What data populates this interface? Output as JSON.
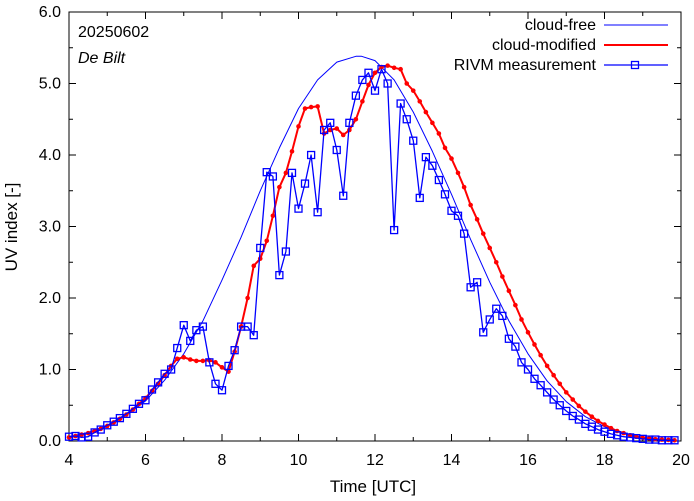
{
  "chart_data": {
    "type": "line",
    "title": "",
    "annotations": {
      "date": "20250602",
      "location": "De Bilt"
    },
    "xlabel": "Time  [UTC]",
    "ylabel": "UV index  [-]",
    "xlim": [
      4,
      20
    ],
    "ylim": [
      0,
      6
    ],
    "x_ticks": [
      4,
      6,
      8,
      10,
      12,
      14,
      16,
      18,
      20
    ],
    "x_tick_labels": [
      "4",
      "6",
      "8",
      "10",
      "12",
      "14",
      "16",
      "18",
      "20"
    ],
    "y_ticks": [
      0,
      1,
      2,
      3,
      4,
      5,
      6
    ],
    "y_tick_labels": [
      "0.0",
      "1.0",
      "2.0",
      "3.0",
      "4.0",
      "5.0",
      "6.0"
    ],
    "legend_position": "top-right",
    "series": [
      {
        "name": "cloud-free",
        "color": "#0000ff",
        "marker": "none",
        "x": [
          4.0,
          4.5,
          5.0,
          5.5,
          6.0,
          6.5,
          7.0,
          7.5,
          8.0,
          8.5,
          9.0,
          9.5,
          10.0,
          10.5,
          11.0,
          11.5,
          11.65,
          12.0,
          12.5,
          13.0,
          13.5,
          14.0,
          14.5,
          15.0,
          15.5,
          16.0,
          16.5,
          17.0,
          17.5,
          18.0,
          18.5,
          19.0,
          19.5,
          19.8
        ],
        "y": [
          0.06,
          0.12,
          0.22,
          0.36,
          0.56,
          0.85,
          1.22,
          1.68,
          2.25,
          2.85,
          3.5,
          4.1,
          4.65,
          5.05,
          5.3,
          5.38,
          5.38,
          5.32,
          5.05,
          4.6,
          4.05,
          3.45,
          2.82,
          2.22,
          1.68,
          1.22,
          0.84,
          0.55,
          0.34,
          0.2,
          0.11,
          0.05,
          0.02,
          0.01
        ]
      },
      {
        "name": "cloud-modified",
        "color": "#ff0000",
        "marker": "dot",
        "x": [
          4.0,
          4.17,
          4.33,
          4.5,
          4.67,
          4.83,
          5.0,
          5.17,
          5.33,
          5.5,
          5.67,
          5.83,
          6.0,
          6.17,
          6.33,
          6.5,
          6.67,
          6.83,
          7.0,
          7.17,
          7.33,
          7.5,
          7.67,
          7.83,
          8.0,
          8.17,
          8.33,
          8.5,
          8.67,
          8.83,
          9.0,
          9.17,
          9.33,
          9.5,
          9.67,
          9.83,
          10.0,
          10.17,
          10.33,
          10.5,
          10.67,
          10.83,
          11.0,
          11.17,
          11.33,
          11.5,
          11.67,
          11.83,
          12.0,
          12.17,
          12.33,
          12.5,
          12.67,
          12.83,
          13.0,
          13.17,
          13.33,
          13.5,
          13.67,
          13.83,
          14.0,
          14.17,
          14.33,
          14.5,
          14.67,
          14.83,
          15.0,
          15.17,
          15.33,
          15.5,
          15.67,
          15.83,
          16.0,
          16.17,
          16.33,
          16.5,
          16.67,
          16.83,
          17.0,
          17.17,
          17.33,
          17.5,
          17.67,
          17.83,
          18.0,
          18.17,
          18.33,
          18.5,
          18.67,
          18.83,
          19.0,
          19.17,
          19.33,
          19.5,
          19.67,
          19.83
        ],
        "y": [
          0.05,
          0.07,
          0.09,
          0.11,
          0.14,
          0.17,
          0.21,
          0.26,
          0.31,
          0.37,
          0.44,
          0.52,
          0.6,
          0.7,
          0.8,
          0.92,
          1.05,
          1.15,
          1.17,
          1.14,
          1.12,
          1.12,
          1.13,
          1.1,
          1.03,
          0.97,
          1.25,
          1.6,
          2.0,
          2.45,
          2.55,
          2.8,
          3.15,
          3.55,
          3.75,
          4.05,
          4.4,
          4.65,
          4.67,
          4.68,
          4.3,
          4.35,
          4.37,
          4.28,
          4.35,
          4.5,
          4.75,
          4.98,
          5.15,
          5.23,
          5.25,
          5.22,
          5.2,
          5.0,
          4.9,
          4.75,
          4.6,
          4.45,
          4.3,
          4.1,
          3.95,
          3.75,
          3.55,
          3.3,
          3.1,
          2.9,
          2.7,
          2.5,
          2.3,
          2.1,
          1.9,
          1.7,
          1.52,
          1.35,
          1.2,
          1.05,
          0.92,
          0.8,
          0.68,
          0.58,
          0.49,
          0.41,
          0.34,
          0.28,
          0.23,
          0.18,
          0.14,
          0.11,
          0.08,
          0.06,
          0.045,
          0.035,
          0.025,
          0.02,
          0.015,
          0.01
        ]
      },
      {
        "name": "RIVM measurement",
        "color": "#0000ff",
        "marker": "square",
        "x": [
          4.0,
          4.17,
          4.33,
          4.5,
          4.67,
          4.83,
          5.0,
          5.17,
          5.33,
          5.5,
          5.67,
          5.83,
          6.0,
          6.17,
          6.33,
          6.5,
          6.67,
          6.83,
          7.0,
          7.17,
          7.33,
          7.5,
          7.67,
          7.83,
          8.0,
          8.17,
          8.33,
          8.5,
          8.67,
          8.83,
          9.0,
          9.17,
          9.33,
          9.5,
          9.67,
          9.83,
          10.0,
          10.17,
          10.33,
          10.5,
          10.67,
          10.83,
          11.0,
          11.17,
          11.33,
          11.5,
          11.67,
          11.83,
          12.0,
          12.17,
          12.33,
          12.5,
          12.67,
          12.83,
          13.0,
          13.17,
          13.33,
          13.5,
          13.67,
          13.83,
          14.0,
          14.17,
          14.33,
          14.5,
          14.67,
          14.83,
          15.0,
          15.17,
          15.33,
          15.5,
          15.67,
          15.83,
          16.0,
          16.17,
          16.33,
          16.5,
          16.67,
          16.83,
          17.0,
          17.17,
          17.33,
          17.5,
          17.67,
          17.83,
          18.0,
          18.17,
          18.33,
          18.5,
          18.67,
          18.83,
          19.0,
          19.17,
          19.33,
          19.5,
          19.67,
          19.83
        ],
        "y": [
          0.06,
          0.07,
          0.05,
          0.06,
          0.12,
          0.16,
          0.22,
          0.27,
          0.32,
          0.38,
          0.45,
          0.52,
          0.57,
          0.72,
          0.82,
          0.94,
          1.0,
          1.3,
          1.62,
          1.4,
          1.55,
          1.6,
          1.1,
          0.8,
          0.71,
          1.05,
          1.27,
          1.6,
          1.6,
          1.48,
          2.7,
          3.76,
          3.7,
          2.32,
          2.65,
          3.75,
          3.25,
          3.6,
          4.0,
          3.2,
          4.35,
          4.45,
          4.07,
          3.43,
          4.45,
          4.83,
          5.05,
          5.15,
          4.9,
          5.2,
          5.0,
          2.95,
          4.72,
          4.5,
          4.2,
          3.4,
          3.97,
          3.85,
          3.65,
          3.45,
          3.22,
          3.15,
          2.9,
          2.15,
          2.22,
          1.52,
          1.7,
          1.85,
          1.75,
          1.43,
          1.32,
          1.1,
          1.0,
          0.87,
          0.78,
          0.68,
          0.58,
          0.5,
          0.42,
          0.35,
          0.3,
          0.24,
          0.2,
          0.16,
          0.13,
          0.1,
          0.08,
          0.06,
          0.05,
          0.04,
          0.03,
          0.02,
          0.02,
          0.01,
          0.01,
          0.01
        ]
      }
    ]
  }
}
